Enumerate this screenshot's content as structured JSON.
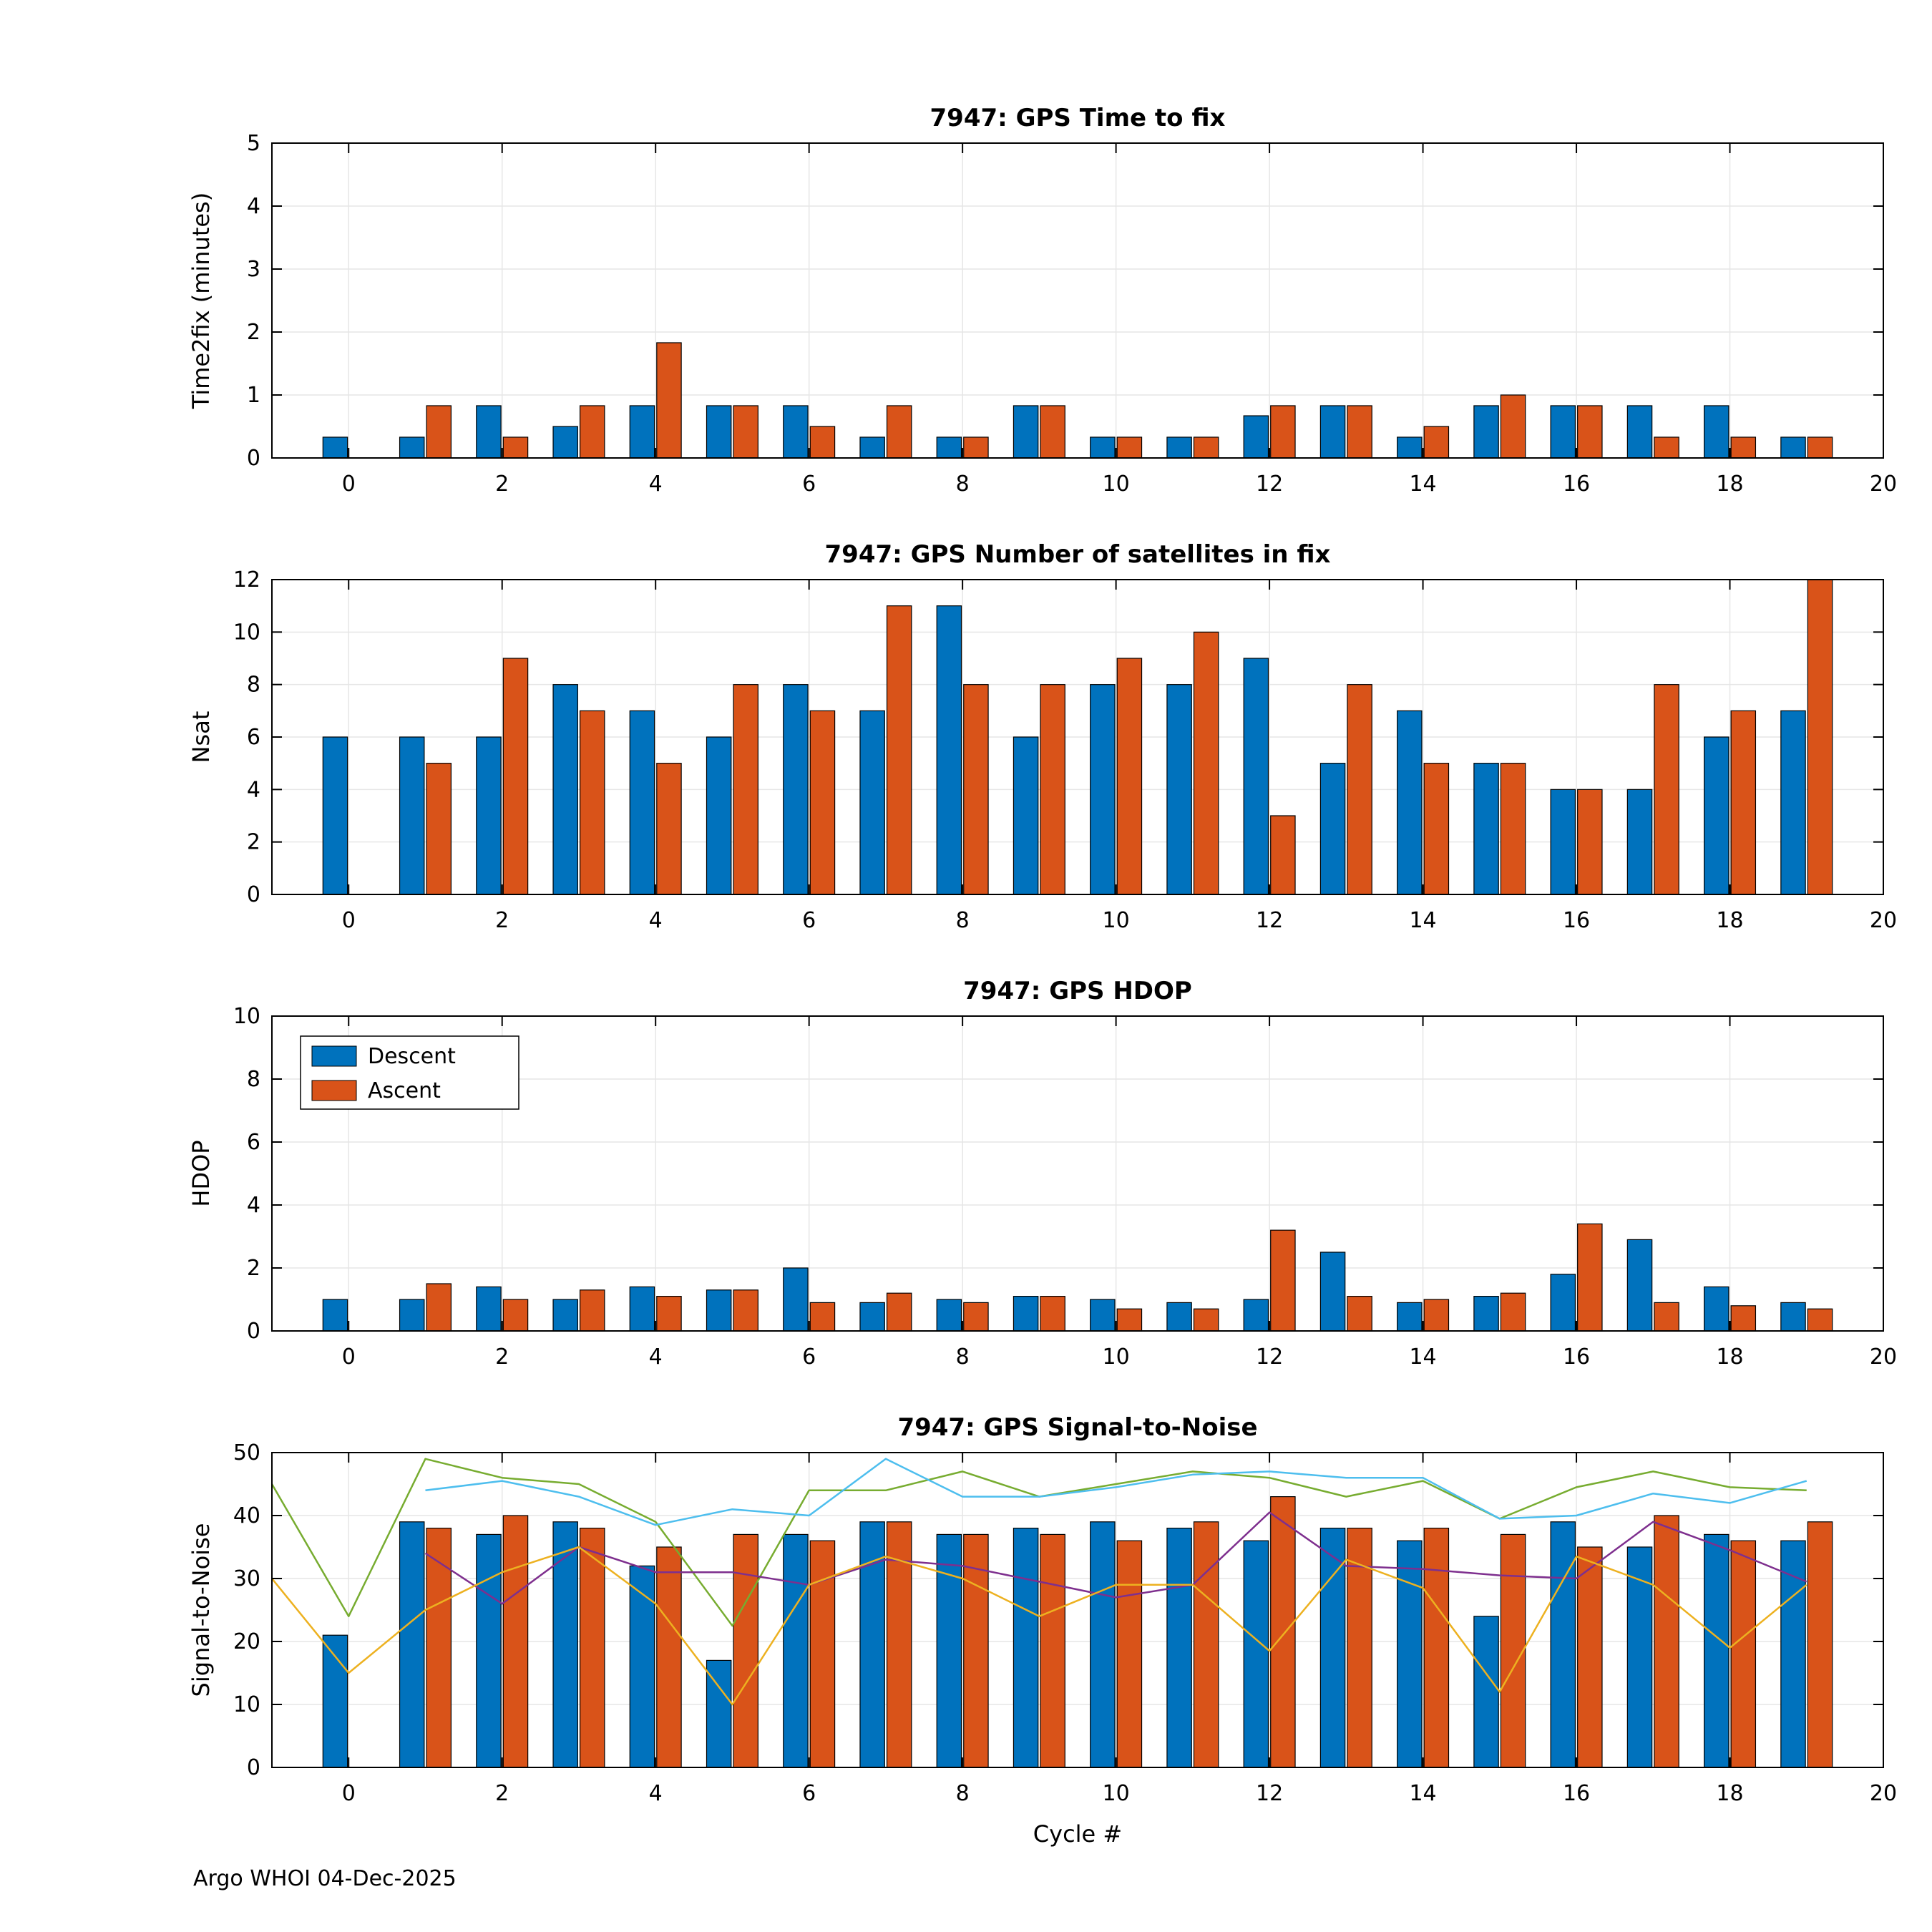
{
  "figure": {
    "footer": "Argo WHOI 04-Dec-2025",
    "colors": {
      "descent": "#0072BD",
      "ascent": "#D95319",
      "grid": "#e6e6e6",
      "axis": "#000000"
    }
  },
  "chart_data": [
    {
      "type": "bar",
      "title": "7947: GPS Time to fix",
      "ylabel": "Time2fix (minutes)",
      "ylim": [
        0,
        5
      ],
      "yticks": [
        0,
        1,
        2,
        3,
        4,
        5
      ],
      "xlim": [
        -1,
        20
      ],
      "xticks": [
        0,
        2,
        4,
        6,
        8,
        10,
        12,
        14,
        16,
        18,
        20
      ],
      "categories": [
        0,
        1,
        2,
        3,
        4,
        5,
        6,
        7,
        8,
        9,
        10,
        11,
        12,
        13,
        14,
        15,
        16,
        17,
        18,
        19
      ],
      "series": [
        {
          "name": "Descent",
          "color": "#0072BD",
          "values": [
            0.33,
            0.33,
            0.83,
            0.5,
            0.83,
            0.83,
            0.83,
            0.33,
            0.33,
            0.83,
            0.33,
            0.33,
            0.67,
            0.83,
            0.33,
            0.83,
            0.83,
            0.83,
            0.83,
            0.33
          ]
        },
        {
          "name": "Ascent",
          "color": "#D95319",
          "values": [
            null,
            0.83,
            0.33,
            0.83,
            1.83,
            0.83,
            0.5,
            0.83,
            0.33,
            0.83,
            0.33,
            0.33,
            0.83,
            0.83,
            0.5,
            1.0,
            0.83,
            0.33,
            0.33,
            0.33
          ]
        }
      ]
    },
    {
      "type": "bar",
      "title": "7947: GPS Number of satellites in fix",
      "ylabel": "Nsat",
      "ylim": [
        0,
        12
      ],
      "yticks": [
        0,
        2,
        4,
        6,
        8,
        10,
        12
      ],
      "xlim": [
        -1,
        20
      ],
      "xticks": [
        0,
        2,
        4,
        6,
        8,
        10,
        12,
        14,
        16,
        18,
        20
      ],
      "categories": [
        0,
        1,
        2,
        3,
        4,
        5,
        6,
        7,
        8,
        9,
        10,
        11,
        12,
        13,
        14,
        15,
        16,
        17,
        18,
        19
      ],
      "series": [
        {
          "name": "Descent",
          "color": "#0072BD",
          "values": [
            6,
            6,
            6,
            8,
            7,
            6,
            8,
            7,
            11,
            6,
            8,
            8,
            9,
            5,
            7,
            5,
            4,
            4,
            6,
            7
          ]
        },
        {
          "name": "Ascent",
          "color": "#D95319",
          "values": [
            null,
            5,
            9,
            7,
            5,
            8,
            7,
            11,
            8,
            8,
            9,
            10,
            3,
            8,
            5,
            5,
            4,
            8,
            7,
            12
          ]
        }
      ]
    },
    {
      "type": "bar",
      "title": "7947: GPS HDOP",
      "ylabel": "HDOP",
      "ylim": [
        0,
        10
      ],
      "yticks": [
        0,
        2,
        4,
        6,
        8,
        10
      ],
      "xlim": [
        -1,
        20
      ],
      "xticks": [
        0,
        2,
        4,
        6,
        8,
        10,
        12,
        14,
        16,
        18,
        20
      ],
      "legend": {
        "position": "northwest",
        "entries": [
          "Descent",
          "Ascent"
        ]
      },
      "categories": [
        0,
        1,
        2,
        3,
        4,
        5,
        6,
        7,
        8,
        9,
        10,
        11,
        12,
        13,
        14,
        15,
        16,
        17,
        18,
        19
      ],
      "series": [
        {
          "name": "Descent",
          "color": "#0072BD",
          "values": [
            1.0,
            1.0,
            1.4,
            1.0,
            1.4,
            1.3,
            2.0,
            0.9,
            1.0,
            1.1,
            1.0,
            0.9,
            1.0,
            2.5,
            0.9,
            1.1,
            1.8,
            2.9,
            1.4,
            0.9
          ]
        },
        {
          "name": "Ascent",
          "color": "#D95319",
          "values": [
            null,
            1.5,
            1.0,
            1.3,
            1.1,
            1.3,
            0.9,
            1.2,
            0.9,
            1.1,
            0.7,
            0.7,
            3.2,
            1.1,
            1.0,
            1.2,
            3.4,
            0.9,
            0.8,
            0.7
          ]
        }
      ]
    },
    {
      "type": "bar",
      "title": "7947: GPS Signal-to-Noise",
      "ylabel": "Signal-to-Noise",
      "xlabel": "Cycle #",
      "ylim": [
        0,
        50
      ],
      "yticks": [
        0,
        10,
        20,
        30,
        40,
        50
      ],
      "xlim": [
        -1,
        20
      ],
      "xticks": [
        0,
        2,
        4,
        6,
        8,
        10,
        12,
        14,
        16,
        18,
        20
      ],
      "categories": [
        0,
        1,
        2,
        3,
        4,
        5,
        6,
        7,
        8,
        9,
        10,
        11,
        12,
        13,
        14,
        15,
        16,
        17,
        18,
        19
      ],
      "series": [
        {
          "name": "Descent",
          "color": "#0072BD",
          "values": [
            21,
            39,
            37,
            39,
            32,
            17,
            37,
            39,
            37,
            38,
            39,
            38,
            36,
            38,
            36,
            24,
            39,
            35,
            37,
            36
          ]
        },
        {
          "name": "Ascent",
          "color": "#D95319",
          "values": [
            null,
            38,
            40,
            38,
            35,
            37,
            36,
            39,
            37,
            37,
            36,
            39,
            43,
            38,
            38,
            37,
            35,
            40,
            36,
            39
          ]
        }
      ],
      "lines": [
        {
          "name": "green-line",
          "color": "#77AC30",
          "x": [
            -1,
            0,
            1,
            2,
            3,
            4,
            5,
            6,
            7,
            8,
            9,
            10,
            11,
            12,
            13,
            14,
            15,
            16,
            17,
            18,
            19
          ],
          "y": [
            45,
            24,
            49,
            46,
            45,
            39,
            22.5,
            44,
            44,
            47,
            43,
            45,
            47,
            46,
            43,
            45.5,
            39.5,
            44.5,
            47,
            44.5,
            44
          ]
        },
        {
          "name": "cyan-line",
          "color": "#4DBEEE",
          "x": [
            1,
            2,
            3,
            4,
            5,
            6,
            7,
            8,
            9,
            10,
            11,
            12,
            13,
            14,
            15,
            16,
            17,
            18,
            19
          ],
          "y": [
            44,
            45.5,
            43,
            38.5,
            41,
            40,
            49,
            43,
            43,
            44.5,
            46.5,
            47,
            46,
            46,
            39.5,
            40,
            43.5,
            42,
            45.5
          ]
        },
        {
          "name": "purple-line",
          "color": "#7E2F8E",
          "x": [
            1,
            2,
            3,
            4,
            5,
            6,
            7,
            8,
            9,
            10,
            11,
            12,
            13,
            14,
            15,
            16,
            17,
            18,
            19
          ],
          "y": [
            34,
            26,
            35,
            31,
            31,
            29,
            33,
            32,
            29.5,
            27,
            29,
            40.5,
            32,
            31.5,
            30.5,
            30,
            39,
            34.5,
            29.5
          ]
        },
        {
          "name": "yellow-line",
          "color": "#EDB120",
          "x": [
            -1,
            0,
            1,
            2,
            3,
            4,
            5,
            6,
            7,
            8,
            9,
            10,
            11,
            12,
            13,
            14,
            15,
            16,
            17,
            18,
            19
          ],
          "y": [
            30,
            15,
            25,
            31,
            35,
            26,
            10,
            29,
            33.5,
            30,
            24,
            29,
            29,
            18.5,
            33,
            28.5,
            12,
            33.5,
            29,
            19,
            29
          ]
        }
      ]
    }
  ]
}
